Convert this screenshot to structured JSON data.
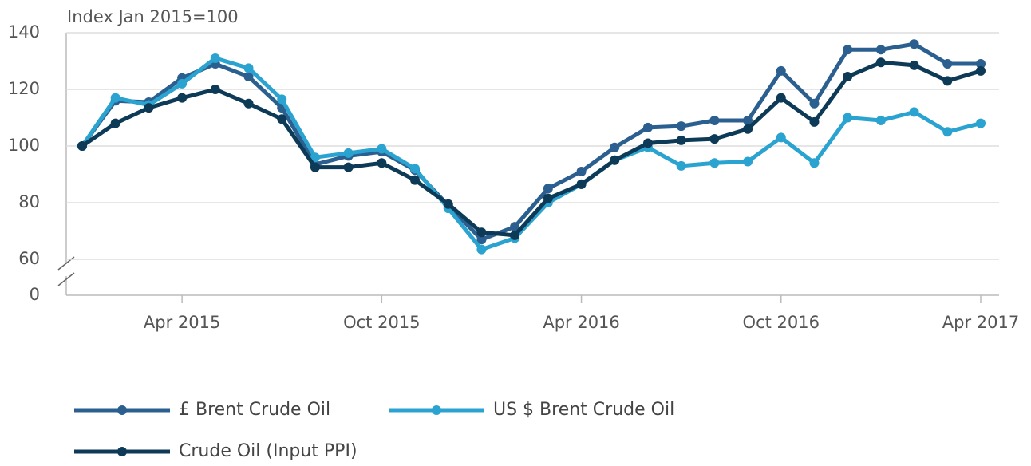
{
  "chart_data": {
    "type": "line",
    "y_axis_label": "Index Jan 2015=100",
    "categories": [
      null,
      null,
      null,
      "Apr 2015",
      null,
      null,
      null,
      null,
      null,
      "Oct 2015",
      null,
      null,
      null,
      null,
      null,
      "Apr 2016",
      null,
      null,
      null,
      null,
      null,
      "Oct 2016",
      null,
      null,
      null,
      null,
      null,
      "Apr 2017"
    ],
    "series": [
      {
        "name": "£ Brent Crude Oil",
        "color": "#2a5f8f",
        "values": [
          100,
          116,
          115.5,
          124,
          129,
          124.5,
          113.5,
          93.5,
          96.5,
          98,
          91.5,
          79,
          67,
          71.5,
          85,
          91,
          99.5,
          106.5,
          107,
          109,
          109,
          126.5,
          115,
          134,
          134,
          136,
          129,
          129
        ]
      },
      {
        "name": "US $ Brent Crude Oil",
        "color": "#2ba3d0",
        "values": [
          100,
          117,
          114.5,
          122,
          131,
          127.5,
          116.5,
          96,
          97.5,
          99,
          92,
          78,
          63.5,
          67.5,
          80,
          86.5,
          95,
          99.5,
          93,
          94,
          94.5,
          103,
          94,
          110,
          109,
          112,
          105,
          108
        ]
      },
      {
        "name": "Crude Oil (Input PPI)",
        "color": "#0d3a56",
        "values": [
          100,
          108,
          113.5,
          117,
          120,
          115,
          109.5,
          92.5,
          92.5,
          94,
          88,
          79.5,
          69.5,
          68.5,
          81.5,
          86.5,
          95,
          101,
          102,
          102.5,
          106,
          117,
          108.5,
          124.5,
          129.5,
          128.5,
          123,
          126.5
        ]
      }
    ],
    "ylim": [
      0,
      140
    ],
    "yticks": [
      0,
      60,
      80,
      100,
      120,
      140
    ],
    "axis_break": true,
    "grid": true
  }
}
